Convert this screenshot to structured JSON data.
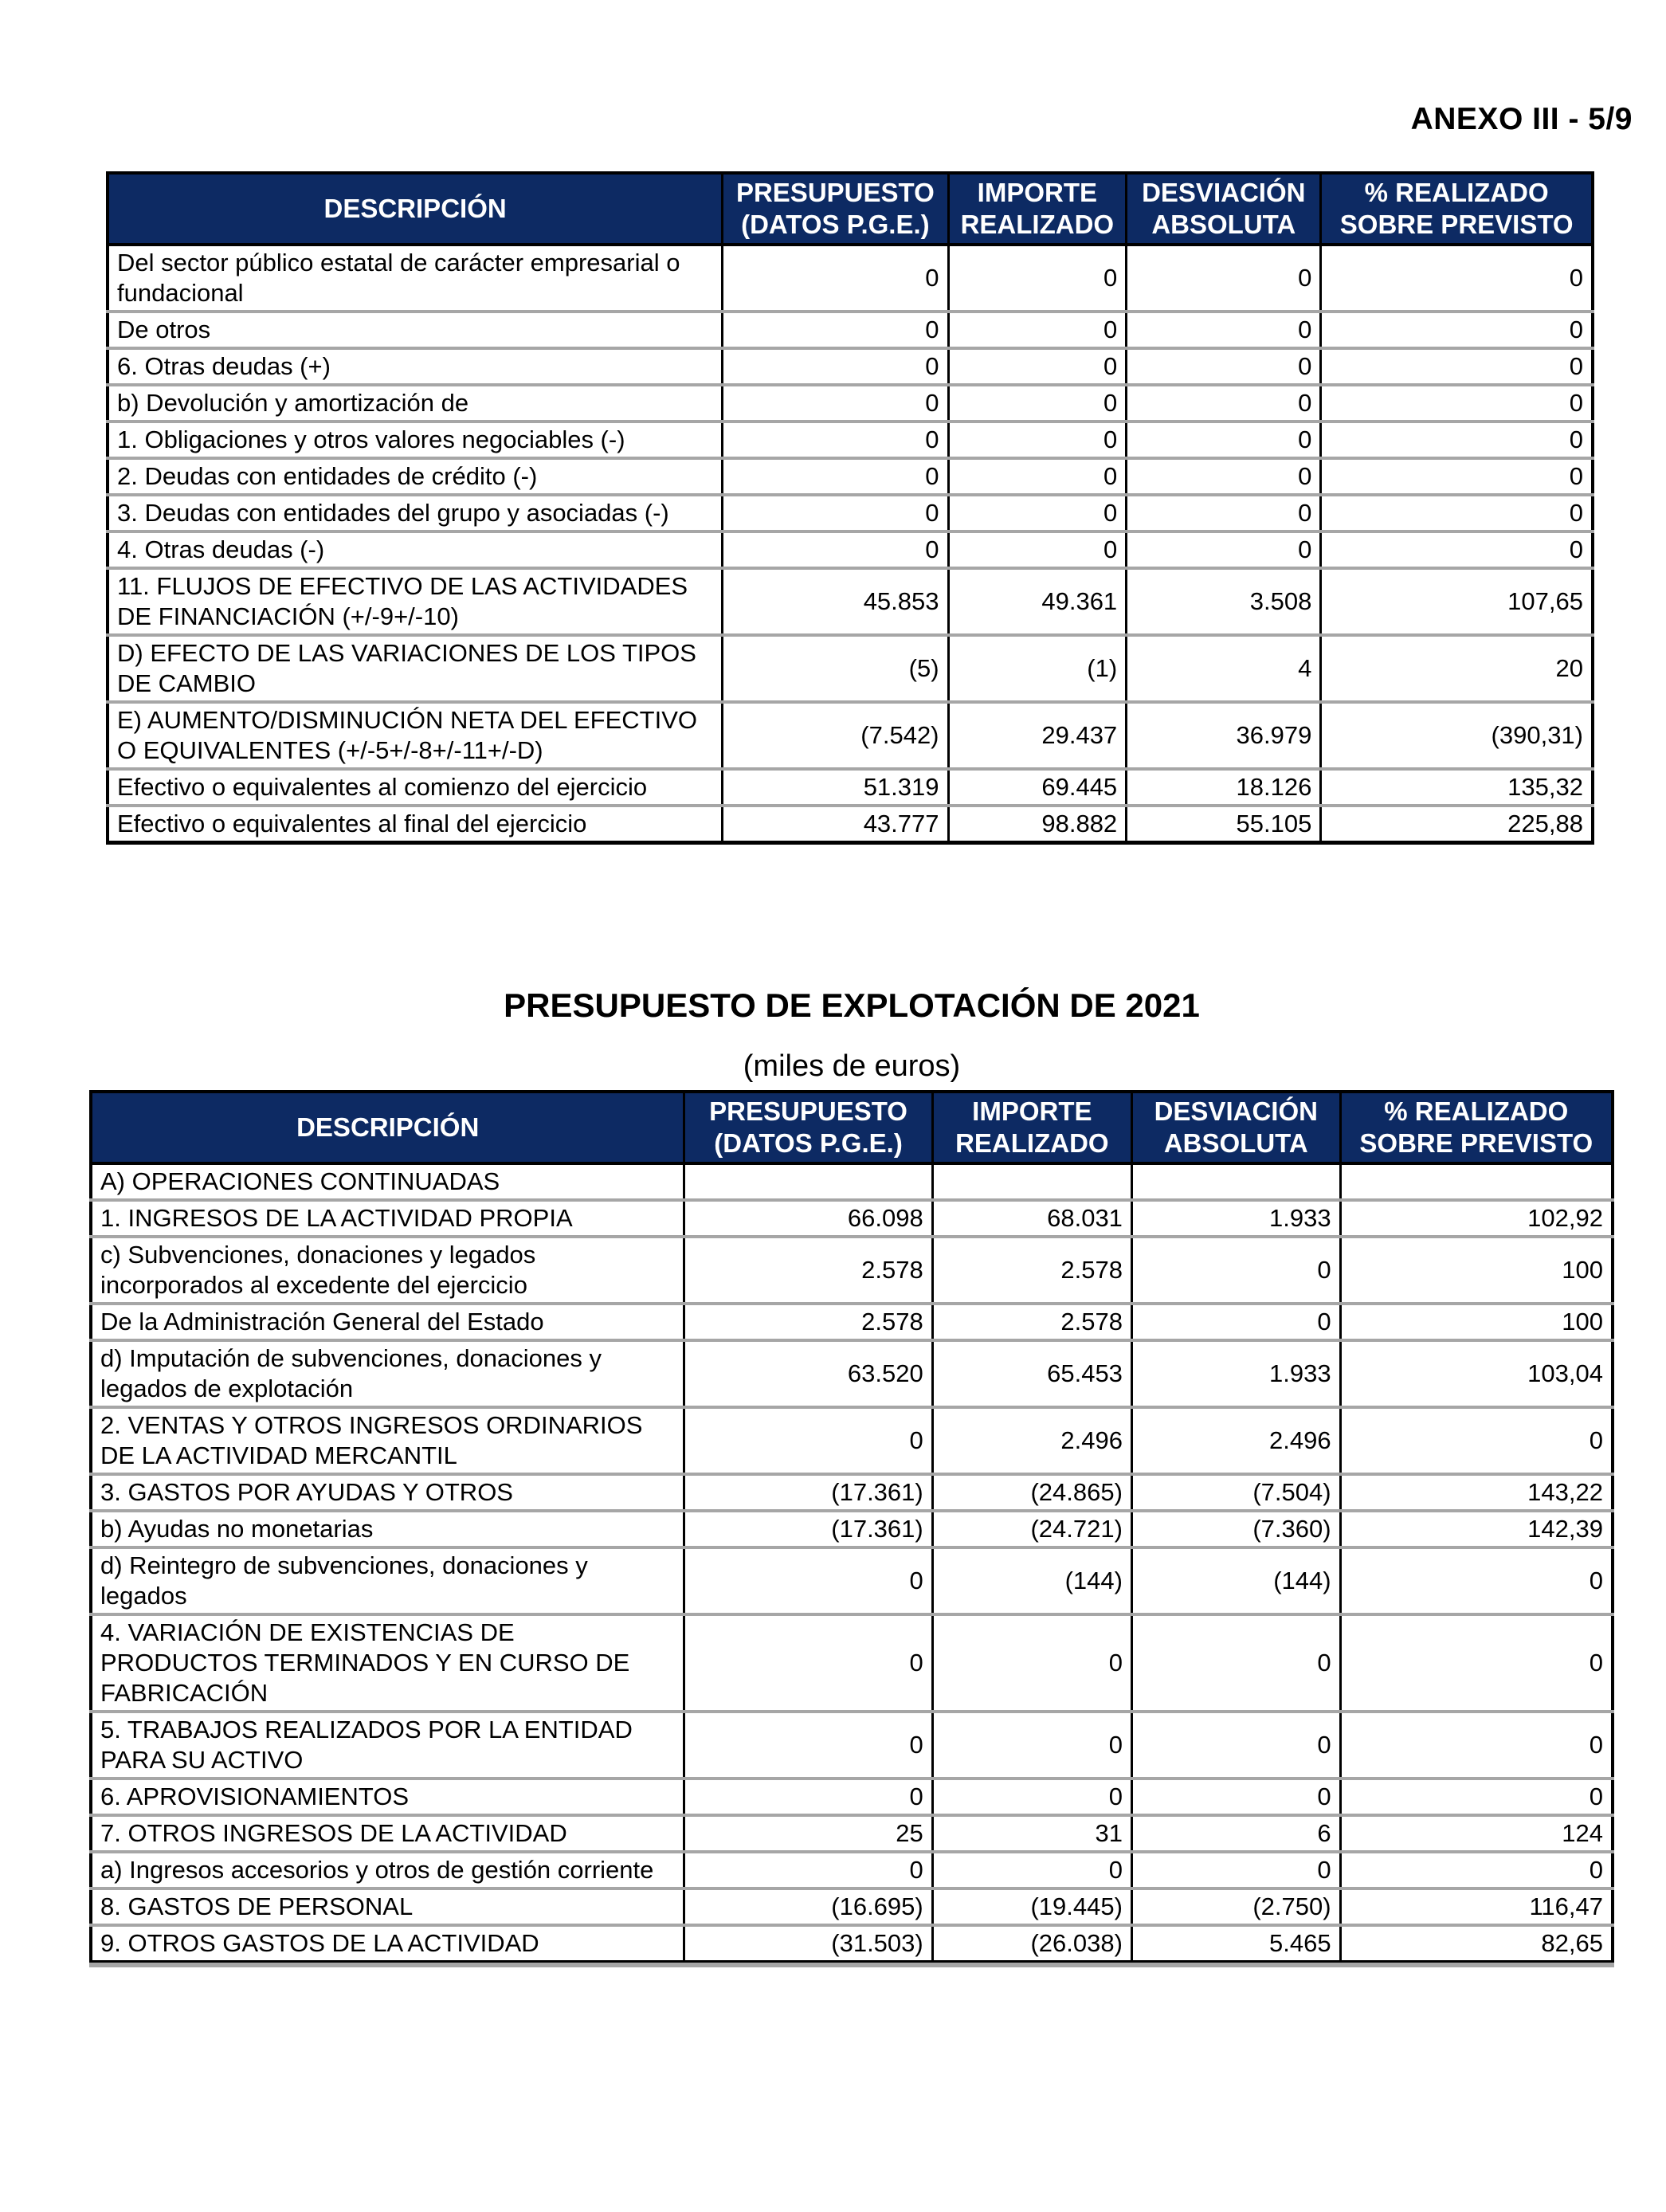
{
  "page": {
    "annex_label": "ANEXO III - 5/9"
  },
  "colors": {
    "header_bg": "#0d2a63",
    "header_text": "#ffffff",
    "row_separator": "#a6a6a6",
    "border": "#000000"
  },
  "section2": {
    "title": "PRESUPUESTO DE EXPLOTACIÓN DE 2021",
    "subtitle": "(miles de euros)"
  },
  "table1": {
    "headers": [
      "DESCRIPCIÓN",
      "PRESUPUESTO\n(DATOS P.G.E.)",
      "IMPORTE\nREALIZADO",
      "DESVIACIÓN\nABSOLUTA",
      "% REALIZADO\nSOBRE PREVISTO"
    ],
    "rows": [
      [
        "Del sector público estatal de carácter empresarial o fundacional",
        "0",
        "0",
        "0",
        "0"
      ],
      [
        "De otros",
        "0",
        "0",
        "0",
        "0"
      ],
      [
        "6. Otras deudas (+)",
        "0",
        "0",
        "0",
        "0"
      ],
      [
        "b) Devolución y amortización de",
        "0",
        "0",
        "0",
        "0"
      ],
      [
        "1. Obligaciones y otros valores negociables (-)",
        "0",
        "0",
        "0",
        "0"
      ],
      [
        "2. Deudas con entidades de crédito (-)",
        "0",
        "0",
        "0",
        "0"
      ],
      [
        "3. Deudas con entidades del grupo y asociadas (-)",
        "0",
        "0",
        "0",
        "0"
      ],
      [
        "4. Otras deudas (-)",
        "0",
        "0",
        "0",
        "0"
      ],
      [
        "11. FLUJOS DE EFECTIVO DE LAS ACTIVIDADES DE FINANCIACIÓN (+/-9+/-10)",
        "45.853",
        "49.361",
        "3.508",
        "107,65"
      ],
      [
        "D) EFECTO DE LAS VARIACIONES DE LOS TIPOS DE CAMBIO",
        "(5)",
        "(1)",
        "4",
        "20"
      ],
      [
        "E) AUMENTO/DISMINUCIÓN NETA DEL EFECTIVO O EQUIVALENTES (+/-5+/-8+/-11+/-D)",
        "(7.542)",
        "29.437",
        "36.979",
        "(390,31)"
      ],
      [
        "Efectivo o equivalentes al comienzo del ejercicio",
        "51.319",
        "69.445",
        "18.126",
        "135,32"
      ],
      [
        "Efectivo o equivalentes al final del ejercicio",
        "43.777",
        "98.882",
        "55.105",
        "225,88"
      ]
    ]
  },
  "table2": {
    "headers": [
      "DESCRIPCIÓN",
      "PRESUPUESTO\n(DATOS P.G.E.)",
      "IMPORTE\nREALIZADO",
      "DESVIACIÓN\nABSOLUTA",
      "% REALIZADO\nSOBRE PREVISTO"
    ],
    "rows": [
      [
        "A) OPERACIONES CONTINUADAS",
        "",
        "",
        "",
        ""
      ],
      [
        "1. INGRESOS DE LA ACTIVIDAD PROPIA",
        "66.098",
        "68.031",
        "1.933",
        "102,92"
      ],
      [
        "c) Subvenciones, donaciones y legados incorporados al excedente del ejercicio",
        "2.578",
        "2.578",
        "0",
        "100"
      ],
      [
        "De la Administración General del Estado",
        "2.578",
        "2.578",
        "0",
        "100"
      ],
      [
        "d) Imputación de subvenciones, donaciones y legados de explotación",
        "63.520",
        "65.453",
        "1.933",
        "103,04"
      ],
      [
        "2. VENTAS Y OTROS INGRESOS ORDINARIOS DE LA ACTIVIDAD MERCANTIL",
        "0",
        "2.496",
        "2.496",
        "0"
      ],
      [
        "3. GASTOS POR AYUDAS Y OTROS",
        "(17.361)",
        "(24.865)",
        "(7.504)",
        "143,22"
      ],
      [
        "b) Ayudas no monetarias",
        "(17.361)",
        "(24.721)",
        "(7.360)",
        "142,39"
      ],
      [
        "d) Reintegro de subvenciones, donaciones y legados",
        "0",
        "(144)",
        "(144)",
        "0"
      ],
      [
        "4. VARIACIÓN DE EXISTENCIAS DE PRODUCTOS TERMINADOS Y EN CURSO DE FABRICACIÓN",
        "0",
        "0",
        "0",
        "0"
      ],
      [
        "5. TRABAJOS REALIZADOS POR LA ENTIDAD PARA SU ACTIVO",
        "0",
        "0",
        "0",
        "0"
      ],
      [
        "6. APROVISIONAMIENTOS",
        "0",
        "0",
        "0",
        "0"
      ],
      [
        "7. OTROS INGRESOS DE LA ACTIVIDAD",
        "25",
        "31",
        "6",
        "124"
      ],
      [
        "a) Ingresos accesorios y otros de gestión corriente",
        "0",
        "0",
        "0",
        "0"
      ],
      [
        "8. GASTOS DE PERSONAL",
        "(16.695)",
        "(19.445)",
        "(2.750)",
        "116,47"
      ],
      [
        "9. OTROS GASTOS DE LA ACTIVIDAD",
        "(31.503)",
        "(26.038)",
        "5.465",
        "82,65"
      ]
    ]
  }
}
